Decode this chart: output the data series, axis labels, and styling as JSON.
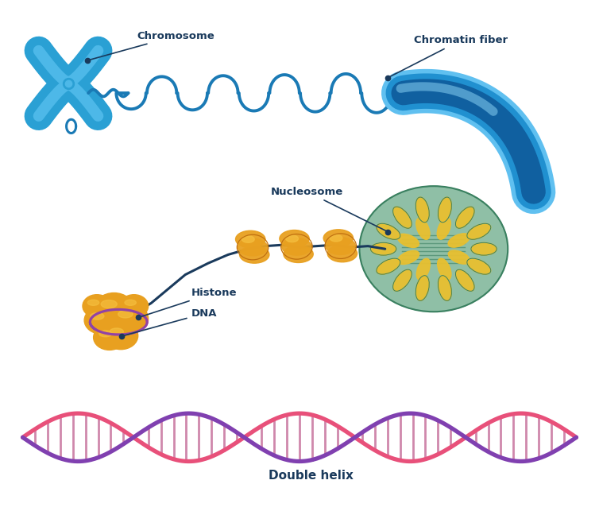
{
  "labels": {
    "chromosome": "Chromosome",
    "chromatin": "Chromatin fiber",
    "nucleosome": "Nucleosome",
    "histone": "Histone",
    "dna": "DNA",
    "double_helix": "Double helix"
  },
  "colors": {
    "chr_light": "#4db8e8",
    "chr_mid": "#2aa0d4",
    "chr_dark": "#1a80b0",
    "chromatin_line": "#1a7ab5",
    "tube_light": "#60c0f0",
    "tube_mid": "#2090d0",
    "tube_dark": "#1060a0",
    "nav": "#1a3a5c",
    "gold_light": "#f5c040",
    "gold_mid": "#e8a020",
    "gold_dark": "#c07010",
    "nuc_teal": "#6aaa88",
    "nuc_teal_dark": "#3a8060",
    "nuc_yellow": "#e8c030",
    "pink": "#e8507a",
    "purple": "#8040b0",
    "rung": "#c06090",
    "white": "#ffffff"
  },
  "figsize": [
    7.54,
    6.48
  ],
  "dpi": 100
}
